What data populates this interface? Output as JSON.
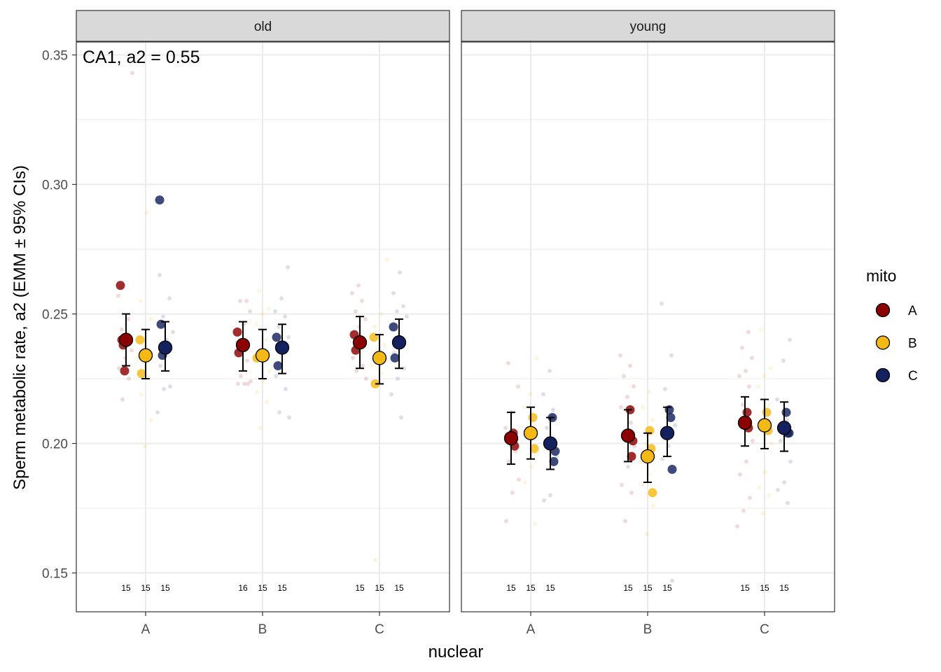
{
  "chart_data": {
    "type": "scatter",
    "annotation": "CA1, a2 = 0.55",
    "xlabel": "nuclear",
    "ylabel": "Sperm metabolic rate, a2 (EMM ± 95% CIs)",
    "ylim": [
      0.135,
      0.355
    ],
    "y_ticks": [
      0.15,
      0.2,
      0.25,
      0.3,
      0.35
    ],
    "y_tick_labels": [
      "0.15",
      "0.20",
      "0.25",
      "0.30",
      "0.35"
    ],
    "categories": [
      "A",
      "B",
      "C"
    ],
    "legend": {
      "title": "mito",
      "position": "right",
      "entries": [
        {
          "label": "A",
          "color": "#8B0000"
        },
        {
          "label": "B",
          "color": "#F5B915"
        },
        {
          "label": "C",
          "color": "#13225E"
        }
      ]
    },
    "panels": [
      {
        "name": "old",
        "groups": [
          {
            "nuclear": "A",
            "mito": "A",
            "emm": 0.24,
            "lower": 0.23,
            "upper": 0.25,
            "n": "15",
            "points": [
              0.261,
              0.24,
              0.238,
              0.228
            ],
            "faint": [
              0.257,
              0.248,
              0.244,
              0.236,
              0.233,
              0.229,
              0.225,
              0.217,
              0.343
            ]
          },
          {
            "nuclear": "A",
            "mito": "B",
            "emm": 0.234,
            "lower": 0.225,
            "upper": 0.244,
            "n": "15",
            "points": [
              0.24,
              0.227
            ],
            "faint": [
              0.289,
              0.255,
              0.248,
              0.238,
              0.233,
              0.226,
              0.219,
              0.209,
              0.199
            ]
          },
          {
            "nuclear": "A",
            "mito": "C",
            "emm": 0.237,
            "lower": 0.228,
            "upper": 0.247,
            "n": "15",
            "points": [
              0.294,
              0.246,
              0.234
            ],
            "faint": [
              0.265,
              0.256,
              0.249,
              0.243,
              0.24,
              0.23,
              0.222,
              0.221,
              0.212
            ]
          },
          {
            "nuclear": "B",
            "mito": "A",
            "emm": 0.238,
            "lower": 0.228,
            "upper": 0.247,
            "n": "16",
            "points": [
              0.243,
              0.235
            ],
            "faint": [
              0.255,
              0.255,
              0.251,
              0.246,
              0.239,
              0.232,
              0.226,
              0.224,
              0.223,
              0.223,
              0.223
            ]
          },
          {
            "nuclear": "B",
            "mito": "B",
            "emm": 0.234,
            "lower": 0.225,
            "upper": 0.244,
            "n": "15",
            "points": [
              0.233
            ],
            "faint": [
              0.259,
              0.252,
              0.25,
              0.246,
              0.24,
              0.236,
              0.228,
              0.224,
              0.22,
              0.216,
              0.206
            ]
          },
          {
            "nuclear": "B",
            "mito": "C",
            "emm": 0.237,
            "lower": 0.227,
            "upper": 0.246,
            "n": "15",
            "points": [
              0.241,
              0.23
            ],
            "faint": [
              0.268,
              0.256,
              0.251,
              0.249,
              0.245,
              0.241,
              0.236,
              0.226,
              0.221,
              0.212,
              0.21
            ]
          },
          {
            "nuclear": "C",
            "mito": "A",
            "emm": 0.239,
            "lower": 0.229,
            "upper": 0.249,
            "n": "15",
            "points": [
              0.242,
              0.236
            ],
            "faint": [
              0.261,
              0.258,
              0.255,
              0.251,
              0.248,
              0.245,
              0.233,
              0.23,
              0.228,
              0.225
            ]
          },
          {
            "nuclear": "C",
            "mito": "B",
            "emm": 0.233,
            "lower": 0.223,
            "upper": 0.242,
            "n": "15",
            "points": [
              0.241,
              0.223
            ],
            "faint": [
              0.271,
              0.25,
              0.245,
              0.238,
              0.236,
              0.23,
              0.227,
              0.155
            ]
          },
          {
            "nuclear": "C",
            "mito": "C",
            "emm": 0.239,
            "lower": 0.229,
            "upper": 0.248,
            "n": "15",
            "points": [
              0.245,
              0.233
            ],
            "faint": [
              0.266,
              0.258,
              0.253,
              0.251,
              0.249,
              0.241,
              0.235,
              0.229,
              0.225,
              0.219,
              0.21
            ]
          }
        ]
      },
      {
        "name": "young",
        "groups": [
          {
            "nuclear": "A",
            "mito": "A",
            "emm": 0.202,
            "lower": 0.192,
            "upper": 0.212,
            "n": "15",
            "points": [
              0.204,
              0.199
            ],
            "faint": [
              0.231,
              0.222,
              0.212,
              0.206,
              0.197,
              0.193,
              0.186,
              0.181,
              0.17
            ]
          },
          {
            "nuclear": "A",
            "mito": "B",
            "emm": 0.204,
            "lower": 0.194,
            "upper": 0.214,
            "n": "15",
            "points": [
              0.21,
              0.198
            ],
            "faint": [
              0.233,
              0.219,
              0.214,
              0.207,
              0.203,
              0.196,
              0.191,
              0.185,
              0.169
            ]
          },
          {
            "nuclear": "A",
            "mito": "C",
            "emm": 0.2,
            "lower": 0.19,
            "upper": 0.21,
            "n": "15",
            "points": [
              0.21,
              0.193,
              0.197
            ],
            "faint": [
              0.228,
              0.219,
              0.213,
              0.206,
              0.195,
              0.18,
              0.178
            ]
          },
          {
            "nuclear": "B",
            "mito": "A",
            "emm": 0.203,
            "lower": 0.193,
            "upper": 0.213,
            "n": "15",
            "points": [
              0.213,
              0.195,
              0.201
            ],
            "faint": [
              0.234,
              0.23,
              0.226,
              0.222,
              0.218,
              0.214,
              0.208,
              0.204,
              0.199,
              0.191,
              0.184,
              0.181,
              0.17
            ]
          },
          {
            "nuclear": "B",
            "mito": "B",
            "emm": 0.195,
            "lower": 0.185,
            "upper": 0.204,
            "n": "15",
            "points": [
              0.205,
              0.198,
              0.181
            ],
            "faint": [
              0.22,
              0.214,
              0.209,
              0.2,
              0.193,
              0.188,
              0.184,
              0.176,
              0.165
            ]
          },
          {
            "nuclear": "B",
            "mito": "C",
            "emm": 0.204,
            "lower": 0.195,
            "upper": 0.214,
            "n": "15",
            "points": [
              0.213,
              0.21,
              0.19
            ],
            "faint": [
              0.254,
              0.234,
              0.221,
              0.207,
              0.199,
              0.194,
              0.147
            ]
          },
          {
            "nuclear": "C",
            "mito": "A",
            "emm": 0.208,
            "lower": 0.199,
            "upper": 0.218,
            "n": "15",
            "points": [
              0.212,
              0.206
            ],
            "faint": [
              0.243,
              0.237,
              0.233,
              0.228,
              0.226,
              0.222,
              0.215,
              0.201,
              0.193,
              0.188,
              0.179,
              0.174,
              0.168
            ]
          },
          {
            "nuclear": "C",
            "mito": "B",
            "emm": 0.207,
            "lower": 0.198,
            "upper": 0.217,
            "n": "15",
            "points": [
              0.212,
              0.205
            ],
            "faint": [
              0.244,
              0.229,
              0.226,
              0.222,
              0.215,
              0.209,
              0.2,
              0.189,
              0.183,
              0.18,
              0.173
            ]
          },
          {
            "nuclear": "C",
            "mito": "C",
            "emm": 0.206,
            "lower": 0.197,
            "upper": 0.216,
            "n": "15",
            "points": [
              0.212,
              0.204,
              0.204
            ],
            "faint": [
              0.24,
              0.232,
              0.217,
              0.209,
              0.201,
              0.193,
              0.185,
              0.182,
              0.177
            ]
          }
        ]
      }
    ]
  }
}
